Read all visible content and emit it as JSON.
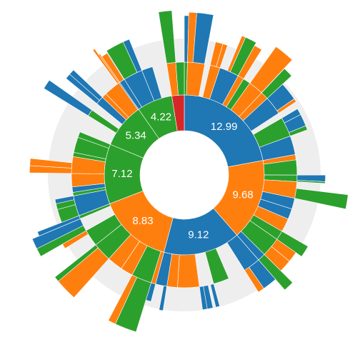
{
  "chart_data": {
    "type": "sunburst",
    "title": "",
    "colors": [
      "#1f77b4",
      "#ff7f0e",
      "#2ca02c",
      "#d62728"
    ],
    "background_band": "#eeeeee",
    "rings": [
      {
        "level": 1,
        "segments": [
          {
            "label": "12.99",
            "value": 12.99,
            "color": "#1f77b4"
          },
          {
            "label": "9.68",
            "value": 9.68,
            "color": "#ff7f0e"
          },
          {
            "label": "9.12",
            "value": 9.12,
            "color": "#1f77b4"
          },
          {
            "label": "8.83",
            "value": 8.83,
            "color": "#ff7f0e"
          },
          {
            "label": "7.12",
            "value": 7.12,
            "color": "#2ca02c"
          },
          {
            "label": "5.34",
            "value": 5.34,
            "color": "#2ca02c"
          },
          {
            "label": "4.22",
            "value": 4.22,
            "color": "#2ca02c"
          }
        ]
      }
    ]
  }
}
